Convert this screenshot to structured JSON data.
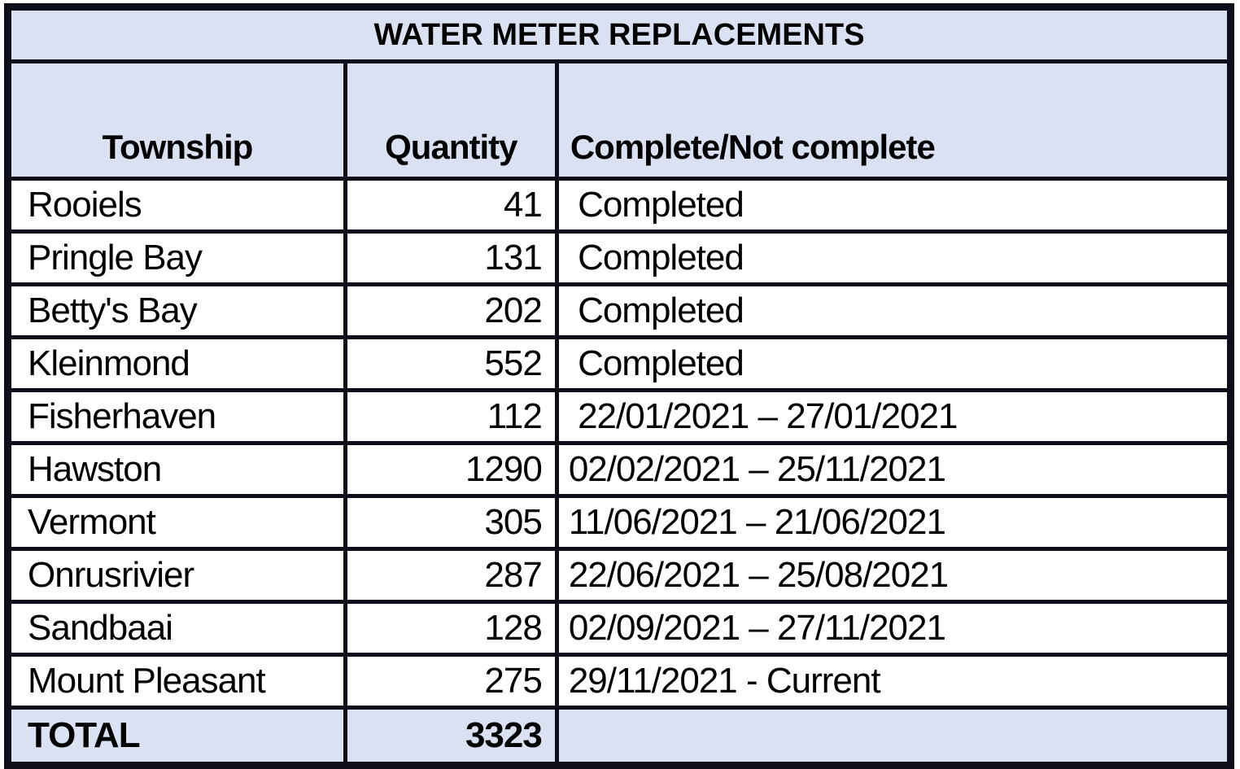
{
  "table": {
    "title": "WATER METER REPLACEMENTS",
    "columns": [
      "Township",
      "Quantity",
      "Complete/Not complete"
    ],
    "rows": [
      {
        "township": "Rooiels",
        "quantity": "41",
        "status": " Completed"
      },
      {
        "township": "Pringle Bay",
        "quantity": "131",
        "status": " Completed"
      },
      {
        "township": "Betty's Bay",
        "quantity": "202",
        "status": " Completed"
      },
      {
        "township": "Kleinmond",
        "quantity": "552",
        "status": " Completed"
      },
      {
        "township": "Fisherhaven",
        "quantity": "112",
        "status": " 22/01/2021 – 27/01/2021"
      },
      {
        "township": "Hawston",
        "quantity": "1290",
        "status": "02/02/2021 – 25/11/2021"
      },
      {
        "township": "Vermont",
        "quantity": "305",
        "status": "11/06/2021 – 21/06/2021"
      },
      {
        "township": "Onrusrivier",
        "quantity": "287",
        "status": "22/06/2021 – 25/08/2021"
      },
      {
        "township": "Sandbaai",
        "quantity": "128",
        "status": "02/09/2021 – 27/11/2021"
      },
      {
        "township": "Mount Pleasant",
        "quantity": "275",
        "status": "29/11/2021 - Current"
      }
    ],
    "total": {
      "label": "TOTAL",
      "quantity": "3323",
      "status": ""
    }
  },
  "colors": {
    "shaded_row_bg": "#dae1f2",
    "border": "#0e0e1a",
    "text": "#000000"
  }
}
